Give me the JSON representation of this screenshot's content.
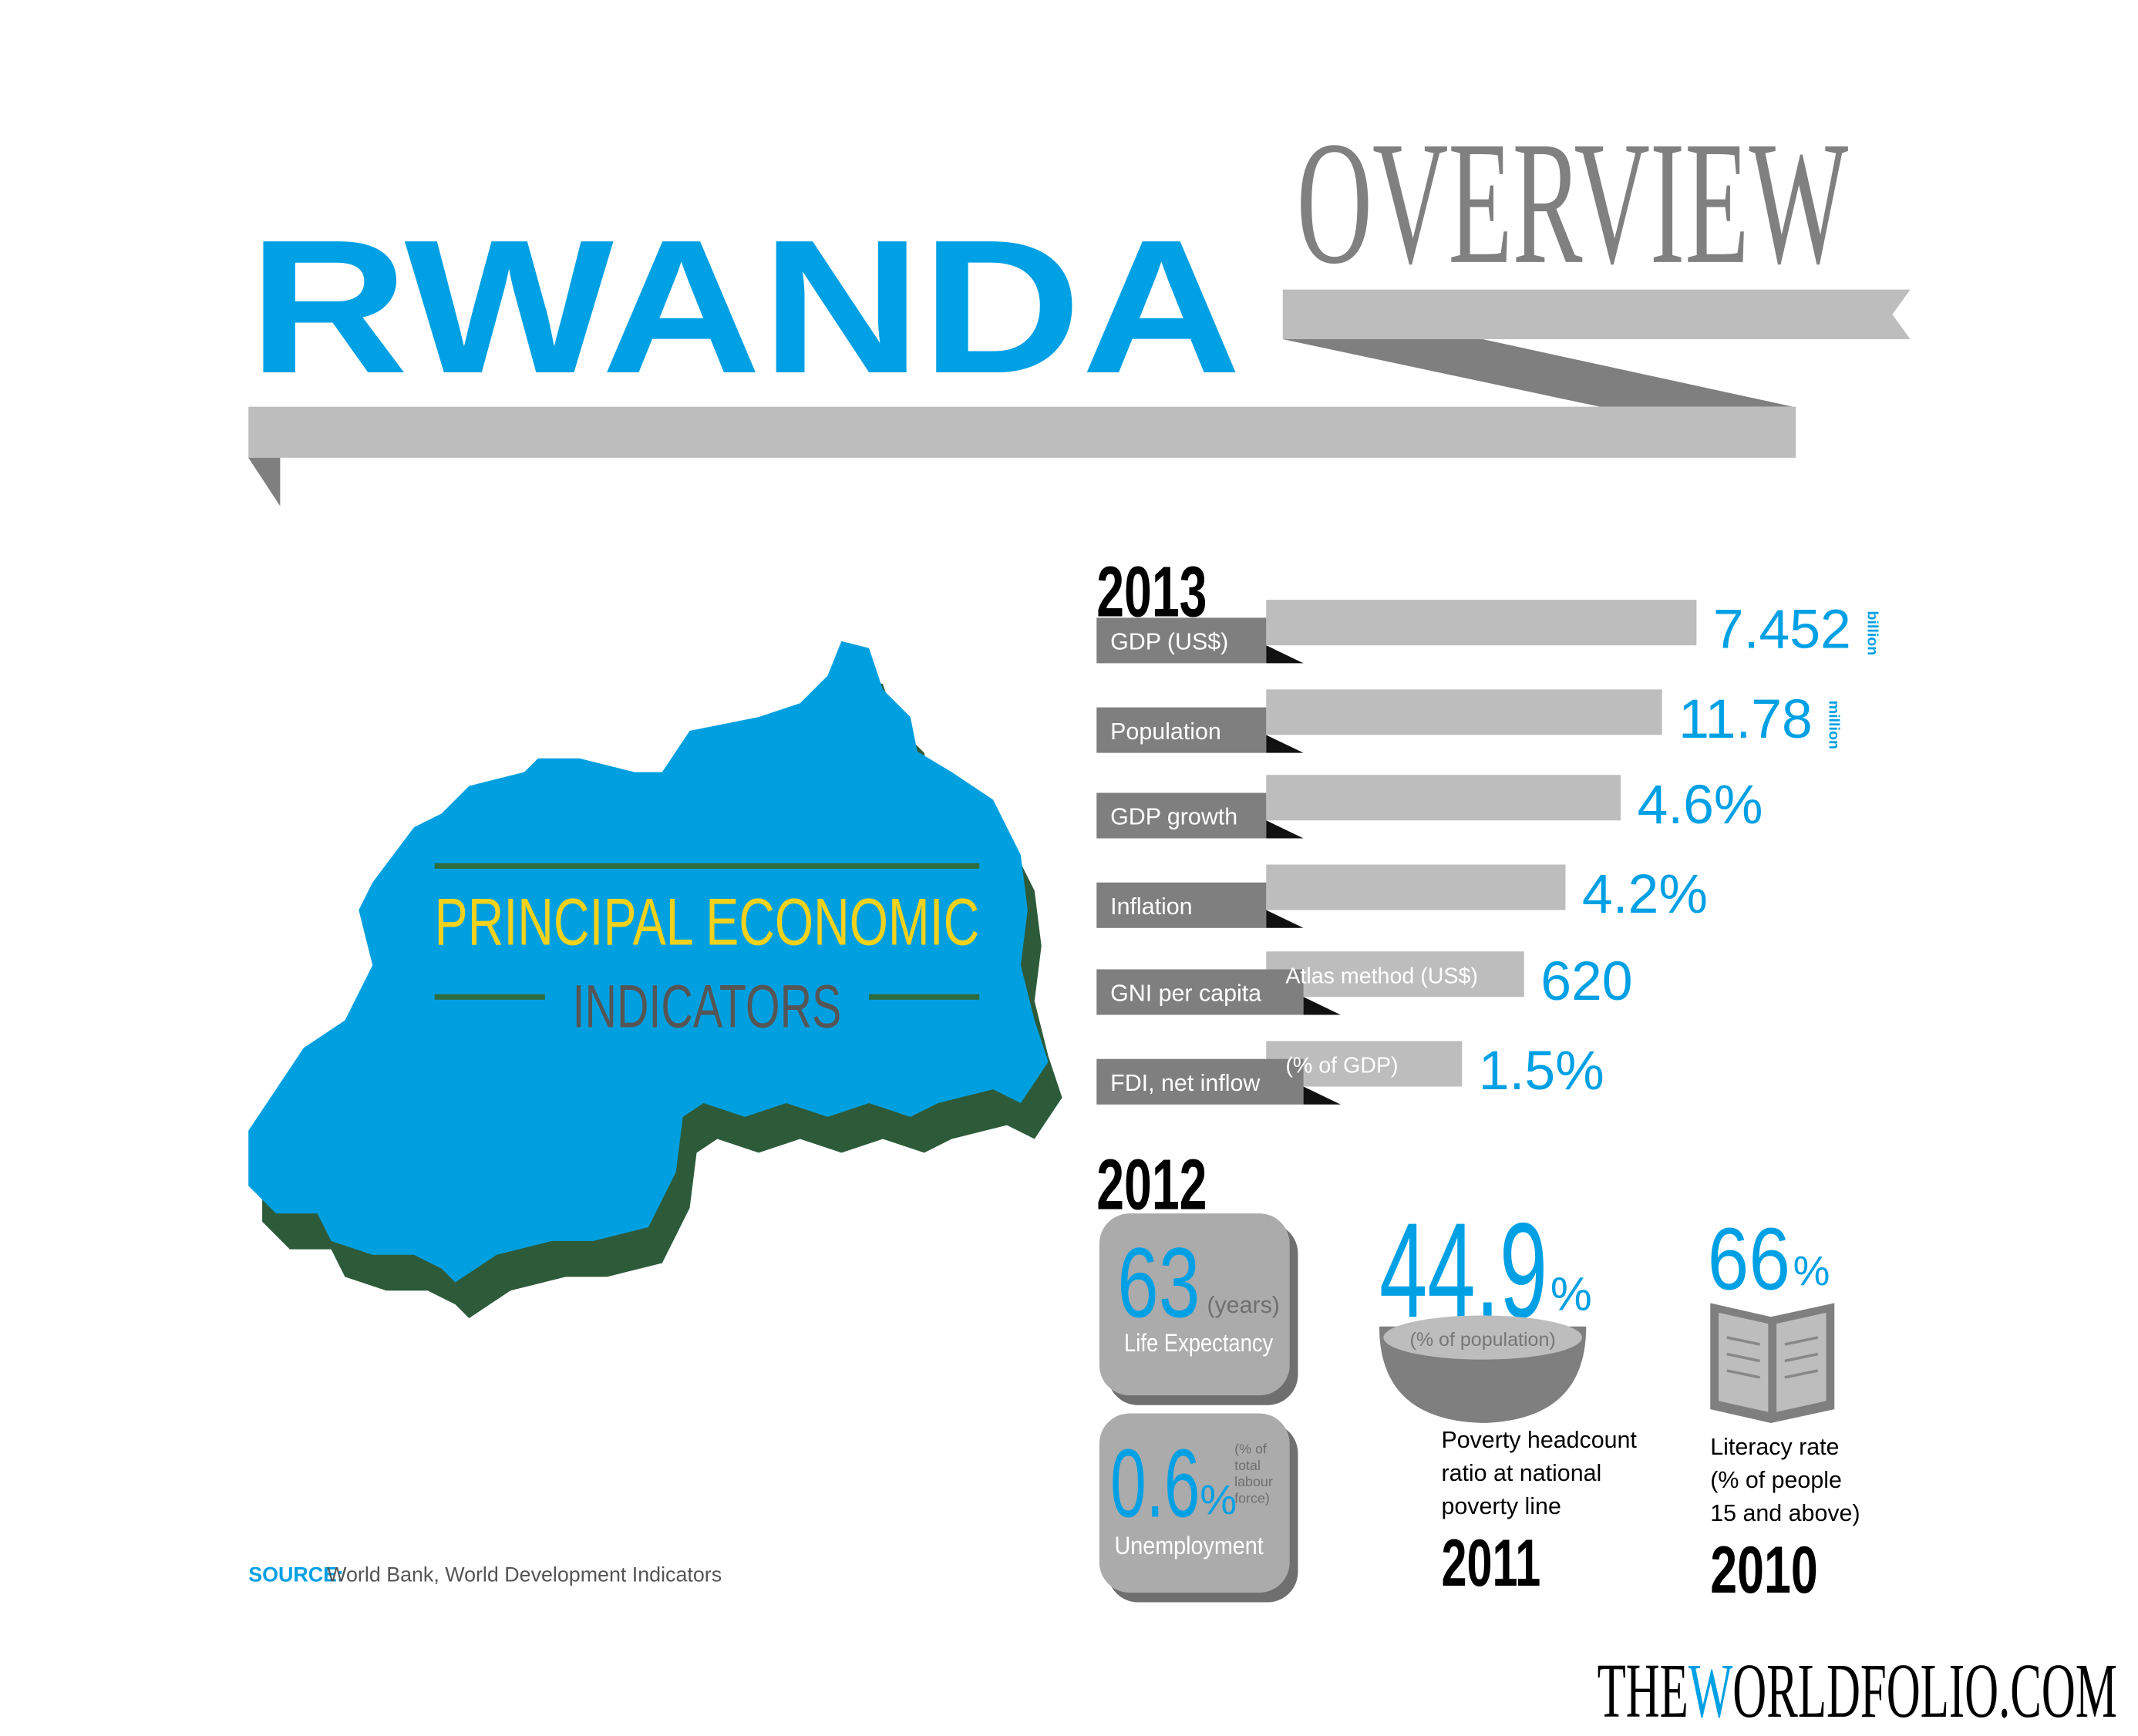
{
  "header": {
    "title": "RWANDA",
    "subtitle": "OVERVIEW"
  },
  "map": {
    "line1": "PRINCIPAL ECONOMIC",
    "line2": "INDICATORS"
  },
  "indicators_2013": {
    "year": "2013",
    "rows": [
      {
        "label": "GDP (US$)",
        "value": "7.452",
        "unit": "billion"
      },
      {
        "label": "Population",
        "value": "11.78",
        "unit": "million"
      },
      {
        "label": "GDP growth",
        "value": "4.6%"
      },
      {
        "label": "Inflation",
        "value": "4.2%"
      },
      {
        "label": "GNI per capita",
        "note": "Atlas method (US$)",
        "value": "620"
      },
      {
        "label": "FDI, net inflow",
        "note": "(% of GDP)",
        "value": "1.5%"
      }
    ]
  },
  "indicators_2012": {
    "year": "2012",
    "life_expectancy": {
      "value": "63",
      "unit": "(years)",
      "label": "Life Expectancy"
    },
    "unemployment": {
      "value": "0.6",
      "percent": "%",
      "unit_lines": [
        "(% of",
        "total",
        "labour",
        "force)"
      ],
      "label": "Unemployment"
    }
  },
  "poverty": {
    "value": "44.9",
    "percent": "%",
    "unit": "(% of population)",
    "label_lines": [
      "Poverty headcount",
      "ratio at national",
      "poverty line"
    ],
    "year": "2011"
  },
  "literacy": {
    "value": "66",
    "percent": "%",
    "label_lines": [
      "Literacy rate",
      "(% of people",
      "15 and above)"
    ],
    "year": "2010"
  },
  "source": {
    "label": "SOURCE:",
    "text": "World Bank, World Development Indicators"
  },
  "footer": {
    "brand_pre": "THE",
    "brand_w": "W",
    "brand_post": "ORLDFOLIO.COM"
  }
}
